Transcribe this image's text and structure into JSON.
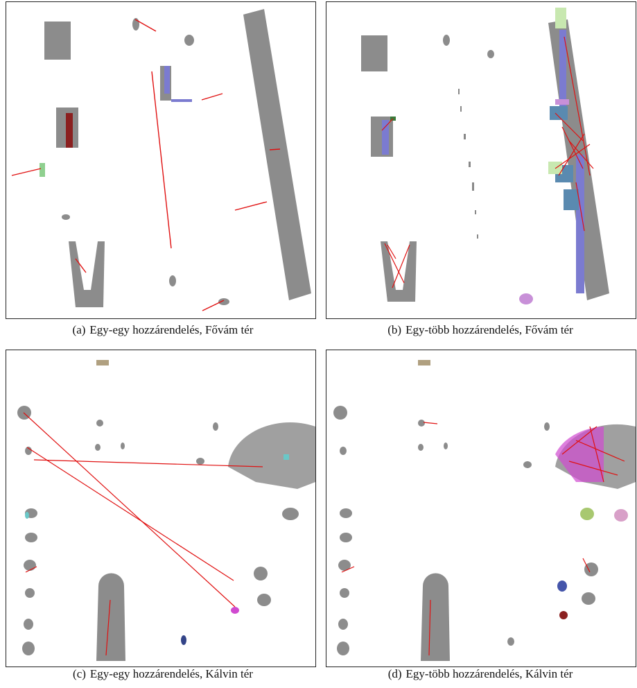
{
  "figures": [
    {
      "label": "(a)",
      "caption": "Egy-egy hozzárendelés, Fővám tér"
    },
    {
      "label": "(b)",
      "caption": "Egy-több hozzárendelés, Fővám tér"
    },
    {
      "label": "(c)",
      "caption": "Egy-egy hozzárendelés, Kálvin tér"
    },
    {
      "label": "(d)",
      "caption": "Egy-több hozzárendelés, Kálvin tér"
    }
  ]
}
